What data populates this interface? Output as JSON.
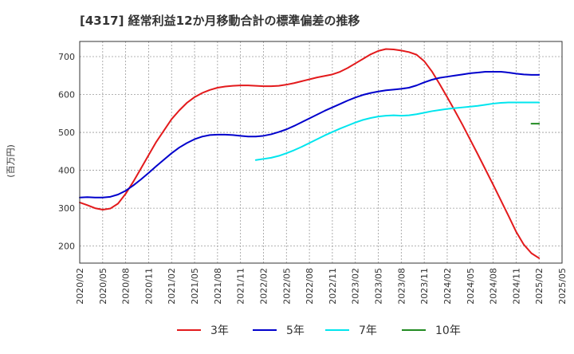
{
  "chart_data": {
    "type": "line",
    "title": "[4317]  経常利益12か月移動合計の標準偏差の推移",
    "ylabel": "(百万円)",
    "xlabel": "",
    "ylim": [
      155,
      740
    ],
    "yticks": [
      200,
      300,
      400,
      500,
      600,
      700
    ],
    "x_ticks": [
      "2020/02",
      "2020/05",
      "2020/08",
      "2020/11",
      "2021/02",
      "2021/05",
      "2021/08",
      "2021/11",
      "2022/02",
      "2022/05",
      "2022/08",
      "2022/11",
      "2023/02",
      "2023/05",
      "2023/08",
      "2023/11",
      "2024/02",
      "2024/05",
      "2024/08",
      "2024/11",
      "2025/02",
      "2025/05"
    ],
    "grid": true,
    "legend_position": "bottom",
    "series": [
      {
        "name": "3年",
        "color": "#e31a1c",
        "points": [
          [
            "2020/02",
            315
          ],
          [
            "2020/03",
            308
          ],
          [
            "2020/04",
            300
          ],
          [
            "2020/05",
            296
          ],
          [
            "2020/06",
            299
          ],
          [
            "2020/07",
            312
          ],
          [
            "2020/08",
            338
          ],
          [
            "2020/09",
            370
          ],
          [
            "2020/10",
            405
          ],
          [
            "2020/11",
            440
          ],
          [
            "2020/12",
            475
          ],
          [
            "2021/01",
            505
          ],
          [
            "2021/02",
            535
          ],
          [
            "2021/03",
            558
          ],
          [
            "2021/04",
            578
          ],
          [
            "2021/05",
            593
          ],
          [
            "2021/06",
            604
          ],
          [
            "2021/07",
            612
          ],
          [
            "2021/08",
            618
          ],
          [
            "2021/09",
            621
          ],
          [
            "2021/10",
            623
          ],
          [
            "2021/11",
            624
          ],
          [
            "2021/12",
            624
          ],
          [
            "2022/01",
            623
          ],
          [
            "2022/02",
            622
          ],
          [
            "2022/03",
            622
          ],
          [
            "2022/04",
            623
          ],
          [
            "2022/05",
            626
          ],
          [
            "2022/06",
            630
          ],
          [
            "2022/07",
            635
          ],
          [
            "2022/08",
            640
          ],
          [
            "2022/09",
            645
          ],
          [
            "2022/10",
            649
          ],
          [
            "2022/11",
            653
          ],
          [
            "2022/12",
            660
          ],
          [
            "2023/01",
            670
          ],
          [
            "2023/02",
            682
          ],
          [
            "2023/03",
            694
          ],
          [
            "2023/04",
            706
          ],
          [
            "2023/05",
            715
          ],
          [
            "2023/06",
            720
          ],
          [
            "2023/07",
            719
          ],
          [
            "2023/08",
            716
          ],
          [
            "2023/09",
            712
          ],
          [
            "2023/10",
            705
          ],
          [
            "2023/11",
            688
          ],
          [
            "2023/12",
            661
          ],
          [
            "2024/01",
            628
          ],
          [
            "2024/02",
            593
          ],
          [
            "2024/03",
            557
          ],
          [
            "2024/04",
            520
          ],
          [
            "2024/05",
            481
          ],
          [
            "2024/06",
            442
          ],
          [
            "2024/07",
            402
          ],
          [
            "2024/08",
            362
          ],
          [
            "2024/09",
            321
          ],
          [
            "2024/10",
            280
          ],
          [
            "2024/11",
            238
          ],
          [
            "2024/12",
            204
          ],
          [
            "2025/01",
            181
          ],
          [
            "2025/02",
            168
          ]
        ]
      },
      {
        "name": "5年",
        "color": "#0000cc",
        "points": [
          [
            "2020/02",
            328
          ],
          [
            "2020/03",
            329
          ],
          [
            "2020/04",
            328
          ],
          [
            "2020/05",
            328
          ],
          [
            "2020/06",
            330
          ],
          [
            "2020/07",
            336
          ],
          [
            "2020/08",
            346
          ],
          [
            "2020/09",
            360
          ],
          [
            "2020/10",
            376
          ],
          [
            "2020/11",
            393
          ],
          [
            "2020/12",
            411
          ],
          [
            "2021/01",
            428
          ],
          [
            "2021/02",
            445
          ],
          [
            "2021/03",
            460
          ],
          [
            "2021/04",
            472
          ],
          [
            "2021/05",
            482
          ],
          [
            "2021/06",
            489
          ],
          [
            "2021/07",
            493
          ],
          [
            "2021/08",
            494
          ],
          [
            "2021/09",
            494
          ],
          [
            "2021/10",
            493
          ],
          [
            "2021/11",
            491
          ],
          [
            "2021/12",
            489
          ],
          [
            "2022/01",
            489
          ],
          [
            "2022/02",
            491
          ],
          [
            "2022/03",
            495
          ],
          [
            "2022/04",
            501
          ],
          [
            "2022/05",
            508
          ],
          [
            "2022/06",
            517
          ],
          [
            "2022/07",
            527
          ],
          [
            "2022/08",
            537
          ],
          [
            "2022/09",
            547
          ],
          [
            "2022/10",
            557
          ],
          [
            "2022/11",
            566
          ],
          [
            "2022/12",
            575
          ],
          [
            "2023/01",
            584
          ],
          [
            "2023/02",
            592
          ],
          [
            "2023/03",
            599
          ],
          [
            "2023/04",
            604
          ],
          [
            "2023/05",
            608
          ],
          [
            "2023/06",
            611
          ],
          [
            "2023/07",
            613
          ],
          [
            "2023/08",
            615
          ],
          [
            "2023/09",
            618
          ],
          [
            "2023/10",
            624
          ],
          [
            "2023/11",
            632
          ],
          [
            "2023/12",
            639
          ],
          [
            "2024/01",
            644
          ],
          [
            "2024/02",
            647
          ],
          [
            "2024/03",
            650
          ],
          [
            "2024/04",
            653
          ],
          [
            "2024/05",
            656
          ],
          [
            "2024/06",
            658
          ],
          [
            "2024/07",
            660
          ],
          [
            "2024/08",
            660
          ],
          [
            "2024/09",
            660
          ],
          [
            "2024/10",
            658
          ],
          [
            "2024/11",
            655
          ],
          [
            "2024/12",
            653
          ],
          [
            "2025/01",
            652
          ],
          [
            "2025/02",
            652
          ]
        ]
      },
      {
        "name": "7年",
        "color": "#00e5ee",
        "points": [
          [
            "2022/01",
            427
          ],
          [
            "2022/02",
            430
          ],
          [
            "2022/03",
            433
          ],
          [
            "2022/04",
            438
          ],
          [
            "2022/05",
            445
          ],
          [
            "2022/06",
            453
          ],
          [
            "2022/07",
            462
          ],
          [
            "2022/08",
            472
          ],
          [
            "2022/09",
            482
          ],
          [
            "2022/10",
            492
          ],
          [
            "2022/11",
            501
          ],
          [
            "2022/12",
            510
          ],
          [
            "2023/01",
            518
          ],
          [
            "2023/02",
            526
          ],
          [
            "2023/03",
            533
          ],
          [
            "2023/04",
            538
          ],
          [
            "2023/05",
            542
          ],
          [
            "2023/06",
            544
          ],
          [
            "2023/07",
            545
          ],
          [
            "2023/08",
            544
          ],
          [
            "2023/09",
            545
          ],
          [
            "2023/10",
            548
          ],
          [
            "2023/11",
            552
          ],
          [
            "2023/12",
            556
          ],
          [
            "2024/01",
            559
          ],
          [
            "2024/02",
            562
          ],
          [
            "2024/03",
            564
          ],
          [
            "2024/04",
            566
          ],
          [
            "2024/05",
            568
          ],
          [
            "2024/06",
            570
          ],
          [
            "2024/07",
            573
          ],
          [
            "2024/08",
            576
          ],
          [
            "2024/09",
            578
          ],
          [
            "2024/10",
            579
          ],
          [
            "2024/11",
            579
          ],
          [
            "2024/12",
            579
          ],
          [
            "2025/01",
            579
          ],
          [
            "2025/02",
            579
          ]
        ]
      },
      {
        "name": "10年",
        "color": "#228b22",
        "points": [
          [
            "2025/01",
            523
          ],
          [
            "2025/02",
            523
          ]
        ]
      }
    ]
  }
}
